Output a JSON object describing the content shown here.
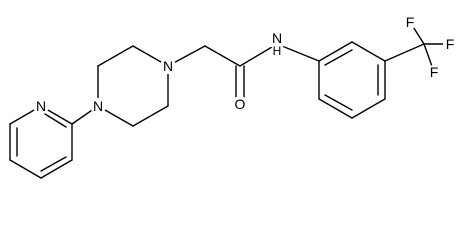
{
  "atoms": [
    {
      "label": "N"
    },
    {
      "label": "N"
    },
    {
      "label": "N"
    },
    {
      "label": "O"
    },
    {
      "label": "N"
    },
    {
      "label": "H"
    },
    {
      "label": "F"
    },
    {
      "label": "F"
    },
    {
      "label": "F"
    }
  ]
}
